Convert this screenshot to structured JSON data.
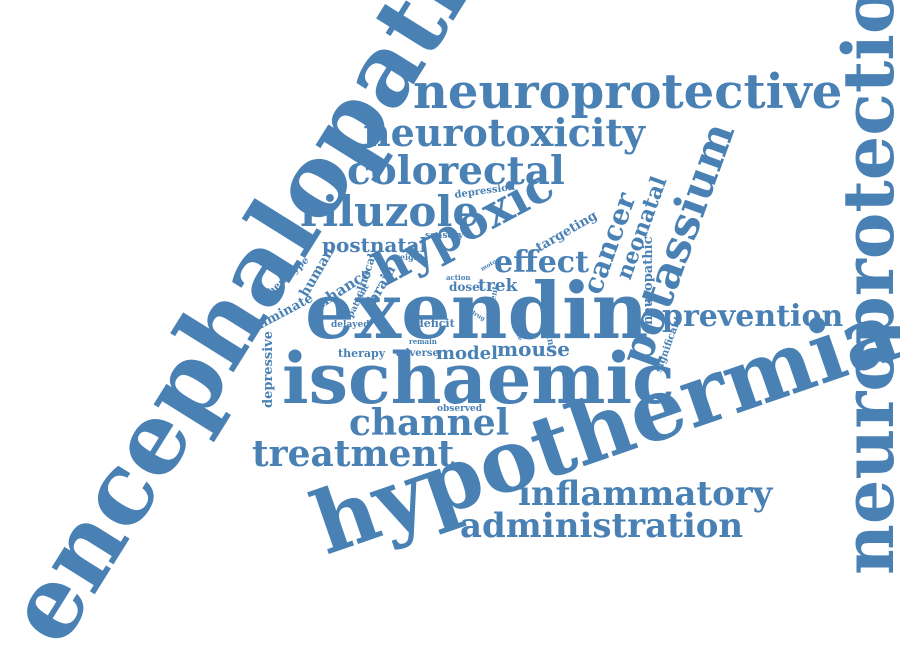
{
  "colors": {
    "word": "#4a81b5",
    "background": "#ffffff"
  },
  "words": {
    "encephalopathy": "encephalopathy",
    "neuroprotection": "neuroprotection",
    "hypothermia": "hypothermia",
    "exendin": "exendin",
    "ischaemic": "ischaemic",
    "neuroprotective": "neuroprotective",
    "neurotoxicity": "neurotoxicity",
    "colorectal": "colorectal",
    "riluzole": "riluzole",
    "hypoxic": "hypoxic",
    "potassium": "potassium",
    "channel": "channel",
    "treatment": "treatment",
    "inflammatory": "inflammatory",
    "administration": "administration",
    "prevention": "prevention",
    "postnatal": "postnatal",
    "effect": "effect",
    "cancer": "cancer",
    "neonatal": "neonatal",
    "mouse": "mouse",
    "model": "model",
    "trek": "trek",
    "dose": "dose",
    "depression": "depression",
    "sensory": "sensory",
    "targeting": "targeting",
    "neuropathic": "neuropathic",
    "human": "human",
    "phenotype": "phenotype",
    "enhance": "enhance",
    "eliminate": "eliminate",
    "depressive": "depressive",
    "brain": "brain",
    "clinical": "clinical",
    "patient": "patient",
    "weight": "weight",
    "delayed": "delayed",
    "therapy": "therapy",
    "adverse": "adverse",
    "deficit": "deficit",
    "remain": "remain",
    "action": "action",
    "motor": "motor",
    "drug": "drug",
    "present": "present",
    "relevant": "relevant",
    "significant": "significant",
    "observed": "observed",
    "injury": "injury",
    "tissue": "tissue"
  }
}
